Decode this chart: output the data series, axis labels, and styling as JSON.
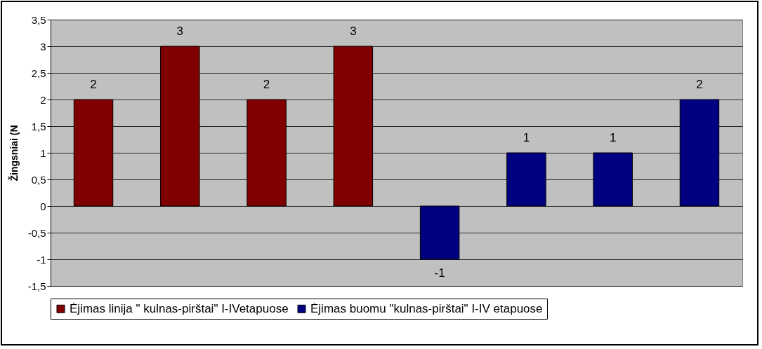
{
  "chart_data": {
    "type": "bar",
    "ylabel": "Žingsniai (N",
    "categories": [
      null,
      null,
      null,
      null,
      null,
      null,
      null,
      null
    ],
    "series": [
      {
        "name": "Ėjimas linija \" kulnas-pirštai\" I-IVetapuose",
        "color": "#800000",
        "values": [
          2,
          3,
          2,
          3,
          null,
          null,
          null,
          null
        ]
      },
      {
        "name": "Ėjimas buomu \"kulnas-pirštai\" I-IV etapuose",
        "color": "#000080",
        "values": [
          null,
          null,
          null,
          null,
          -1,
          1,
          1,
          2
        ]
      }
    ],
    "ylim": [
      -1.5,
      3.5
    ],
    "yticks": [
      {
        "value": -1.5,
        "label": "-1,5"
      },
      {
        "value": -1,
        "label": "-1"
      },
      {
        "value": -0.5,
        "label": "-0,5"
      },
      0,
      {
        "value": 0.5,
        "label": "0,5"
      },
      1,
      {
        "value": 1.5,
        "label": "1,5"
      },
      2,
      {
        "value": 2.5,
        "label": "2,5"
      },
      3,
      {
        "value": 3.5,
        "label": "3,5"
      }
    ],
    "grid": "y",
    "legend": "bottom",
    "data_labels": true
  }
}
